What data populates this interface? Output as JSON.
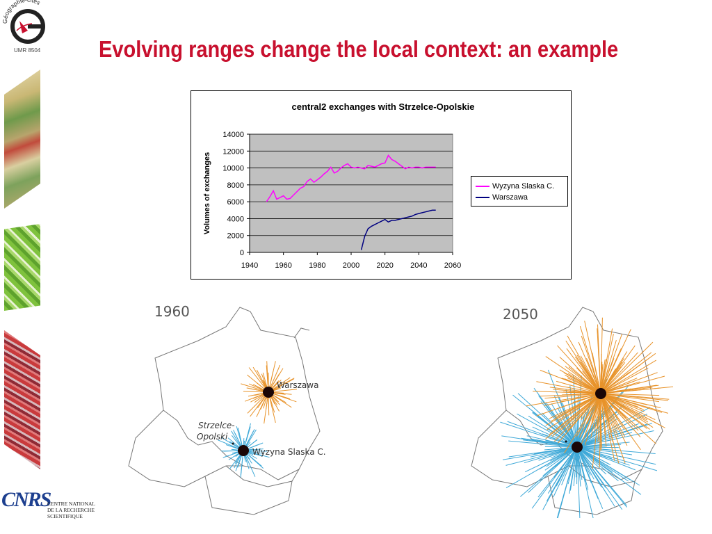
{
  "slide": {
    "title": "Evolving ranges change the local context: an example"
  },
  "logos": {
    "geographie_cites": {
      "text": "Géographie-cités",
      "sub": "UMR 8504"
    },
    "cnrs": {
      "text": "CNRS",
      "caption": "CENTRE NATIONAL\nDE LA RECHERCHE\nSCIENTIFIQUE"
    }
  },
  "chart_data": {
    "type": "line",
    "title": "central2 exchanges with Strzelce-Opolskie",
    "xlabel": "",
    "ylabel": "Volumes of exchanges",
    "xlim": [
      1940,
      2060
    ],
    "ylim": [
      0,
      14000
    ],
    "xticks": [
      1940,
      1960,
      1980,
      2000,
      2020,
      2040,
      2060
    ],
    "yticks": [
      0,
      2000,
      4000,
      6000,
      8000,
      10000,
      12000,
      14000
    ],
    "grid": "horizontal",
    "plot_background": "#c0c0c0",
    "legend": "right",
    "series": [
      {
        "name": "Wyzyna Slaska C.",
        "color": "#ff00ff",
        "x": [
          1950,
          1952,
          1954,
          1956,
          1958,
          1960,
          1962,
          1964,
          1966,
          1968,
          1970,
          1972,
          1974,
          1976,
          1978,
          1980,
          1982,
          1984,
          1986,
          1988,
          1990,
          1992,
          1994,
          1996,
          1998,
          2000,
          2002,
          2004,
          2006,
          2008,
          2010,
          2012,
          2014,
          2016,
          2018,
          2020,
          2022,
          2024,
          2026,
          2028,
          2030,
          2032,
          2034,
          2036,
          2038,
          2040,
          2042,
          2044,
          2046,
          2048,
          2050
        ],
        "y": [
          6000,
          6600,
          7300,
          6300,
          6500,
          6700,
          6300,
          6400,
          6800,
          7200,
          7600,
          7800,
          8400,
          8700,
          8300,
          8600,
          8900,
          9300,
          9600,
          10100,
          9400,
          9600,
          10000,
          10300,
          10500,
          10100,
          10000,
          10100,
          10000,
          9900,
          10300,
          10200,
          10100,
          10300,
          10500,
          10600,
          11500,
          11000,
          10800,
          10500,
          10200,
          9900,
          10100,
          10000,
          10100,
          10100,
          10000,
          10100,
          10100,
          10100,
          10100
        ]
      },
      {
        "name": "Warszawa",
        "color": "#000080",
        "x": [
          2006,
          2008,
          2010,
          2012,
          2014,
          2016,
          2018,
          2020,
          2022,
          2024,
          2026,
          2028,
          2030,
          2032,
          2034,
          2036,
          2038,
          2040,
          2042,
          2044,
          2046,
          2048,
          2050
        ],
        "y": [
          300,
          1900,
          2800,
          3100,
          3300,
          3500,
          3700,
          3900,
          3600,
          3800,
          3800,
          3900,
          4000,
          4100,
          4200,
          4300,
          4500,
          4600,
          4700,
          4800,
          4900,
          5000,
          5000
        ]
      }
    ]
  },
  "maps": [
    {
      "year": "1960",
      "labels": [
        "Warszawa",
        "Strzelce-",
        "Opolski",
        "Wyzyna Slaska C."
      ]
    },
    {
      "year": "2050"
    }
  ]
}
